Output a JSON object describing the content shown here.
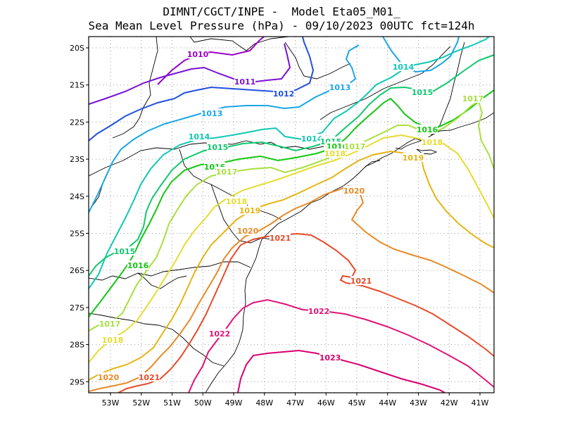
{
  "title": {
    "line1": "DIMNT/CGCT/INPE -  Model Eta05_M01_",
    "line2": "Sea Mean Level Pressure (hPa) - 09/10/2023 00UTC fct=124h"
  },
  "axes": {
    "lon_ticks": [
      "53W",
      "52W",
      "51W",
      "50W",
      "49W",
      "48W",
      "47W",
      "46W",
      "45W",
      "44W",
      "43W",
      "42W",
      "41W"
    ],
    "lat_ticks": [
      "20S",
      "21S",
      "22S",
      "23S",
      "24S",
      "25S",
      "26S",
      "27S",
      "28S",
      "29S"
    ]
  },
  "colors": {
    "1010": "#9a00c8",
    "1011": "#7a10d6",
    "1012": "#2050e0",
    "1013": "#1aa6e8",
    "1014": "#10c8b4",
    "1015": "#10c870",
    "1016": "#12c812",
    "1017": "#a8e040",
    "1018": "#e6dc32",
    "1019": "#e6b414",
    "1020": "#e88a28",
    "1021": "#e84a2a",
    "1022": "#e01478",
    "1023": "#d8006e"
  },
  "contour_labels": [
    {
      "text": "1010",
      "level": "1010"
    },
    {
      "text": "1011",
      "level": "1011"
    },
    {
      "text": "1012",
      "level": "1012"
    },
    {
      "text": "1013",
      "level": "1013"
    },
    {
      "text": "1013",
      "level": "1013"
    },
    {
      "text": "1014",
      "level": "1014"
    },
    {
      "text": "1014",
      "level": "1014"
    },
    {
      "text": "1014",
      "level": "1014"
    },
    {
      "text": "1015",
      "level": "1015"
    },
    {
      "text": "1015",
      "level": "1015"
    },
    {
      "text": "1015",
      "level": "1015"
    },
    {
      "text": "1015",
      "level": "1015"
    },
    {
      "text": "1016",
      "level": "1016"
    },
    {
      "text": "1016",
      "level": "1016"
    },
    {
      "text": "1016",
      "level": "1016"
    },
    {
      "text": "1016",
      "level": "1016"
    },
    {
      "text": "1017",
      "level": "1017"
    },
    {
      "text": "1017",
      "level": "1017"
    },
    {
      "text": "1017",
      "level": "1017"
    },
    {
      "text": "1017",
      "level": "1017"
    },
    {
      "text": "1018",
      "level": "1018"
    },
    {
      "text": "1018",
      "level": "1018"
    },
    {
      "text": "1018",
      "level": "1018"
    },
    {
      "text": "1018",
      "level": "1018"
    },
    {
      "text": "1019",
      "level": "1019"
    },
    {
      "text": "1019",
      "level": "1019"
    },
    {
      "text": "1020",
      "level": "1020"
    },
    {
      "text": "1020",
      "level": "1020"
    },
    {
      "text": "1020",
      "level": "1020"
    },
    {
      "text": "1021",
      "level": "1021"
    },
    {
      "text": "1021",
      "level": "1021"
    },
    {
      "text": "1021",
      "level": "1021"
    },
    {
      "text": "1022",
      "level": "1022"
    },
    {
      "text": "1022",
      "level": "1022"
    },
    {
      "text": "1023",
      "level": "1023"
    }
  ]
}
